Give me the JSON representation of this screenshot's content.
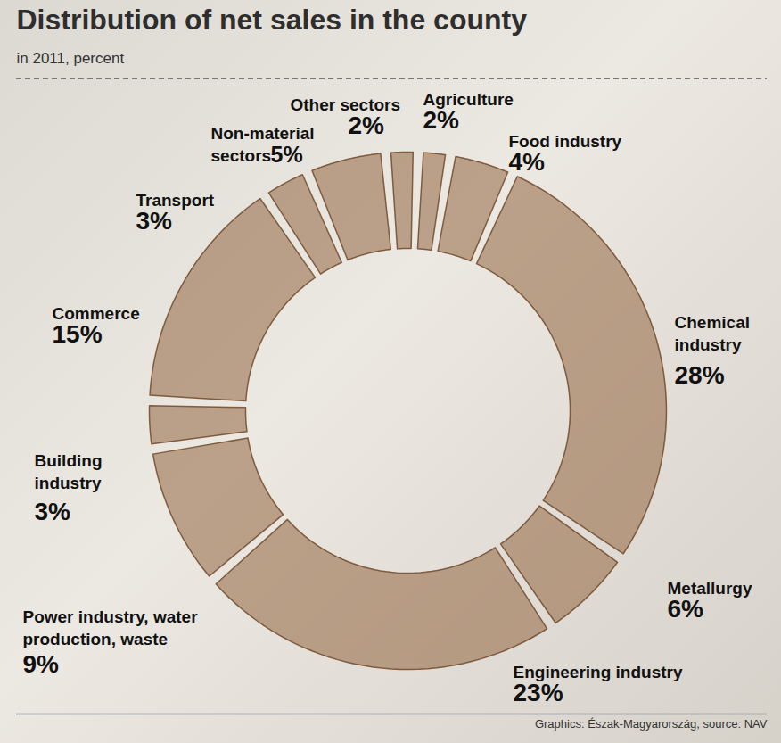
{
  "chart_data": {
    "type": "donut",
    "title": "Distribution of net sales in the county",
    "subtitle": "in 2011, percent",
    "caption": "Graphics: Észak-Magyarország, source: NAV",
    "categories": [
      "Agriculture",
      "Food industry",
      "Chemical industry",
      "Metallurgy",
      "Engineering industry",
      "Power industry, water production, waste",
      "Building industry",
      "Commerce",
      "Transport",
      "Non-material sectors",
      "Other sectors"
    ],
    "values": [
      2,
      4,
      28,
      6,
      23,
      9,
      3,
      15,
      3,
      5,
      2
    ],
    "value_labels": [
      "2%",
      "4%",
      "28%",
      "6%",
      "23%",
      "9%",
      "3%",
      "15%",
      "3%",
      "5%",
      "2%"
    ],
    "data_labels": true,
    "color": "#8c5a32"
  }
}
